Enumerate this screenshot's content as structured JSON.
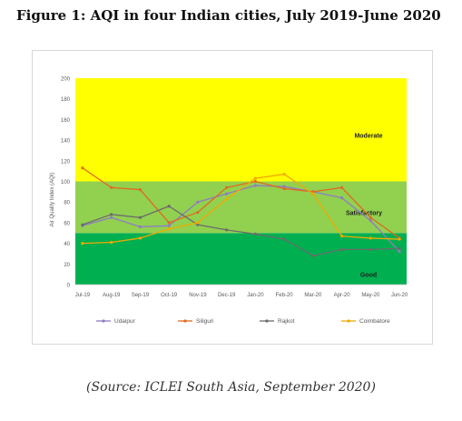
{
  "title": "Figure 1: AQI in four Indian cities, July 2019-June 2020",
  "source": "(Source: ICLEI South Asia, September 2020)",
  "chart_data": {
    "type": "line",
    "categories": [
      "Jul-19",
      "Aug-19",
      "Sep-19",
      "Oct-19",
      "Nov-19",
      "Dec-19",
      "Jan-20",
      "Feb-20",
      "Mar-20",
      "Apr-20",
      "May-20",
      "Jun-20"
    ],
    "ylabel": "Air Quality Index (AQI)",
    "ylim": [
      0,
      200
    ],
    "yticks": [
      0,
      20,
      40,
      60,
      80,
      100,
      120,
      140,
      160,
      180,
      200
    ],
    "grid": false,
    "legend": "bottom",
    "bands": [
      {
        "label": "Good",
        "from": 0,
        "to": 50,
        "color": "#00b050"
      },
      {
        "label": "Satisfactory",
        "from": 50,
        "to": 100,
        "color": "#92d050"
      },
      {
        "label": "Moderate",
        "from": 100,
        "to": 200,
        "color": "#ffff00"
      }
    ],
    "series": [
      {
        "name": "Udaipur",
        "color": "#8e7cc3",
        "values": [
          57,
          65,
          56,
          57,
          80,
          88,
          96,
          95,
          90,
          84,
          62,
          32
        ]
      },
      {
        "name": "Siliguri",
        "color": "#e06a1e",
        "values": [
          113,
          94,
          92,
          60,
          70,
          94,
          100,
          93,
          90,
          94,
          65,
          45
        ]
      },
      {
        "name": "Rajkot",
        "color": "#6b6b6b",
        "values": [
          58,
          68,
          65,
          76,
          58,
          53,
          49,
          44,
          28,
          34,
          34,
          35
        ]
      },
      {
        "name": "Coimbatore",
        "color": "#f2a900",
        "values": [
          40,
          41,
          45,
          54,
          60,
          83,
          103,
          107,
          88,
          47,
          45,
          44
        ]
      }
    ]
  }
}
